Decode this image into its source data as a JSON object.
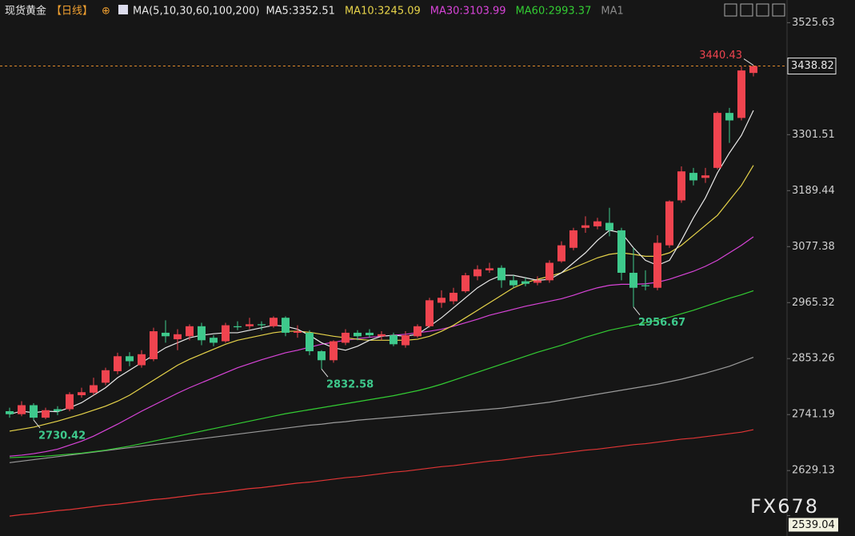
{
  "chart_data": {
    "type": "candlestick",
    "header": {
      "symbol": "现货黄金",
      "period": "【日线】",
      "ma_params": "MA(5,10,30,60,100,200)",
      "ma_readouts": [
        {
          "text": "MA5:3352.51",
          "color": "#e8e8e8"
        },
        {
          "text": "MA10:3245.09",
          "color": "#e6d34a"
        },
        {
          "text": "MA30:3103.99",
          "color": "#d844d8"
        },
        {
          "text": "MA60:2993.37",
          "color": "#33cc33"
        },
        {
          "text": "MA1",
          "color": "#8a8a8a"
        }
      ]
    },
    "watermark": "FX678",
    "ylim": [
      2535,
      3555
    ],
    "yticks": [
      3525.63,
      3301.51,
      3189.44,
      3077.38,
      2965.32,
      2853.26,
      2741.19,
      2629.13,
      2539.04
    ],
    "last_price": 3438.82,
    "up_color": "#f0444f",
    "down_color": "#3ec98c",
    "candles": {
      "open": [
        2748,
        2742,
        2760,
        2735,
        2752,
        2752,
        2780,
        2785,
        2805,
        2828,
        2858,
        2840,
        2852,
        2905,
        2892,
        2898,
        2918,
        2895,
        2888,
        2918,
        2918,
        2922,
        2918,
        2935,
        2905,
        2905,
        2868,
        2850,
        2885,
        2905,
        2905,
        2898,
        2900,
        2880,
        2898,
        2918,
        2965,
        2968,
        2988,
        3018,
        3030,
        3035,
        3010,
        3008,
        3005,
        3010,
        3048,
        3075,
        3115,
        3118,
        3125,
        3110,
        3025,
        3000,
        2995,
        3080,
        3170,
        3225,
        3215,
        3235,
        3345,
        3335,
        3425
      ],
      "high": [
        2755,
        2768,
        2764,
        2755,
        2758,
        2786,
        2795,
        2815,
        2835,
        2865,
        2866,
        2870,
        2915,
        2930,
        2912,
        2922,
        2925,
        2900,
        2925,
        2928,
        2935,
        2928,
        2938,
        2938,
        2920,
        2910,
        2870,
        2890,
        2912,
        2910,
        2912,
        2908,
        2905,
        2908,
        2922,
        2975,
        2990,
        2995,
        3025,
        3040,
        3045,
        3040,
        3020,
        3015,
        3018,
        3050,
        3088,
        3115,
        3138,
        3135,
        3155,
        3115,
        3075,
        3030,
        3100,
        3170,
        3238,
        3235,
        3235,
        3348,
        3355,
        3438,
        3440.43
      ],
      "low": [
        2735,
        2738,
        2730.42,
        2732,
        2740,
        2748,
        2775,
        2780,
        2800,
        2822,
        2838,
        2835,
        2848,
        2885,
        2870,
        2890,
        2880,
        2878,
        2885,
        2910,
        2912,
        2910,
        2915,
        2898,
        2895,
        2860,
        2832.58,
        2845,
        2880,
        2890,
        2895,
        2890,
        2878,
        2875,
        2895,
        2915,
        2955,
        2962,
        2985,
        3010,
        3025,
        2995,
        2995,
        2998,
        3000,
        3005,
        3045,
        3070,
        3105,
        3112,
        3098,
        3010,
        2956.67,
        2990,
        2990,
        3075,
        3165,
        3200,
        3205,
        3232,
        3285,
        3330,
        3418
      ],
      "close": [
        2742,
        2760,
        2735,
        2750,
        2748,
        2782,
        2786,
        2800,
        2830,
        2858,
        2848,
        2862,
        2908,
        2898,
        2902,
        2918,
        2890,
        2885,
        2920,
        2916,
        2922,
        2920,
        2935,
        2905,
        2908,
        2868,
        2850,
        2888,
        2905,
        2898,
        2900,
        2902,
        2882,
        2900,
        2918,
        2970,
        2975,
        2985,
        3020,
        3032,
        3034,
        3010,
        3000,
        3003,
        3010,
        3045,
        3080,
        3110,
        3120,
        3128,
        3110,
        3025,
        2995,
        2998,
        3085,
        3168,
        3228,
        3210,
        3220,
        3345,
        3330,
        3430,
        3438.82
      ]
    },
    "series": [
      {
        "color": "#e03535",
        "values": [
          2538,
          2541,
          2543,
          2546,
          2549,
          2551,
          2554,
          2557,
          2560,
          2562,
          2565,
          2568,
          2571,
          2573,
          2576,
          2579,
          2582,
          2584,
          2587,
          2590,
          2593,
          2595,
          2598,
          2601,
          2604,
          2606,
          2609,
          2612,
          2615,
          2617,
          2620,
          2623,
          2626,
          2628,
          2631,
          2634,
          2637,
          2639,
          2642,
          2645,
          2648,
          2650,
          2653,
          2656,
          2659,
          2661,
          2664,
          2667,
          2670,
          2672,
          2675,
          2678,
          2681,
          2683,
          2686,
          2689,
          2692,
          2694,
          2697,
          2700,
          2703,
          2706,
          2711
        ]
      },
      {
        "color": "#9a9a9a",
        "values": [
          2645,
          2648,
          2651,
          2654,
          2657,
          2660,
          2663,
          2666,
          2669,
          2672,
          2675,
          2678,
          2681,
          2684,
          2687,
          2690,
          2693,
          2696,
          2699,
          2702,
          2705,
          2708,
          2711,
          2714,
          2717,
          2720,
          2722,
          2725,
          2727,
          2730,
          2732,
          2734,
          2736,
          2738,
          2740,
          2742,
          2744,
          2746,
          2748,
          2750,
          2752,
          2754,
          2757,
          2760,
          2763,
          2766,
          2770,
          2774,
          2778,
          2782,
          2786,
          2790,
          2794,
          2798,
          2802,
          2807,
          2812,
          2818,
          2824,
          2831,
          2838,
          2847,
          2856
        ]
      },
      {
        "color": "#33cc33",
        "values": [
          2655,
          2656,
          2657,
          2658,
          2660,
          2662,
          2664,
          2667,
          2670,
          2674,
          2678,
          2683,
          2688,
          2693,
          2698,
          2703,
          2708,
          2713,
          2718,
          2723,
          2728,
          2733,
          2738,
          2743,
          2747,
          2751,
          2755,
          2759,
          2763,
          2767,
          2771,
          2775,
          2779,
          2784,
          2789,
          2795,
          2802,
          2810,
          2818,
          2826,
          2834,
          2842,
          2850,
          2858,
          2866,
          2873,
          2880,
          2888,
          2896,
          2903,
          2910,
          2915,
          2920,
          2925,
          2930,
          2936,
          2943,
          2950,
          2958,
          2966,
          2974,
          2981,
          2989
        ]
      },
      {
        "color": "#d844d8",
        "values": [
          2658,
          2660,
          2663,
          2667,
          2672,
          2680,
          2688,
          2698,
          2710,
          2722,
          2735,
          2748,
          2760,
          2772,
          2784,
          2795,
          2805,
          2815,
          2825,
          2835,
          2843,
          2851,
          2858,
          2865,
          2870,
          2876,
          2882,
          2886,
          2890,
          2893,
          2896,
          2898,
          2900,
          2902,
          2905,
          2908,
          2912,
          2918,
          2925,
          2932,
          2940,
          2946,
          2952,
          2958,
          2963,
          2968,
          2973,
          2980,
          2988,
          2995,
          3000,
          3002,
          3002,
          3003,
          3006,
          3012,
          3020,
          3028,
          3038,
          3050,
          3065,
          3080,
          3097
        ]
      },
      {
        "color": "#e6d34a",
        "values": [
          2708,
          2712,
          2716,
          2722,
          2728,
          2735,
          2742,
          2750,
          2758,
          2768,
          2780,
          2795,
          2810,
          2825,
          2840,
          2852,
          2862,
          2872,
          2882,
          2890,
          2895,
          2900,
          2905,
          2908,
          2908,
          2906,
          2902,
          2898,
          2895,
          2892,
          2890,
          2890,
          2890,
          2890,
          2892,
          2898,
          2908,
          2920,
          2935,
          2950,
          2965,
          2980,
          2995,
          3005,
          3012,
          3018,
          3025,
          3035,
          3045,
          3055,
          3062,
          3065,
          3062,
          3058,
          3058,
          3065,
          3080,
          3100,
          3120,
          3140,
          3170,
          3200,
          3240
        ]
      },
      {
        "color": "#e8e8e8",
        "values": [
          2742,
          2748,
          2745,
          2748,
          2747,
          2755,
          2765,
          2780,
          2795,
          2815,
          2830,
          2845,
          2860,
          2875,
          2885,
          2895,
          2900,
          2903,
          2905,
          2905,
          2910,
          2915,
          2920,
          2918,
          2912,
          2900,
          2885,
          2875,
          2870,
          2878,
          2890,
          2898,
          2900,
          2898,
          2902,
          2918,
          2935,
          2955,
          2975,
          2995,
          3010,
          3020,
          3020,
          3015,
          3010,
          3012,
          3025,
          3045,
          3065,
          3090,
          3110,
          3105,
          3075,
          3050,
          3040,
          3050,
          3090,
          3135,
          3175,
          3225,
          3265,
          3300,
          3350
        ]
      }
    ]
  }
}
